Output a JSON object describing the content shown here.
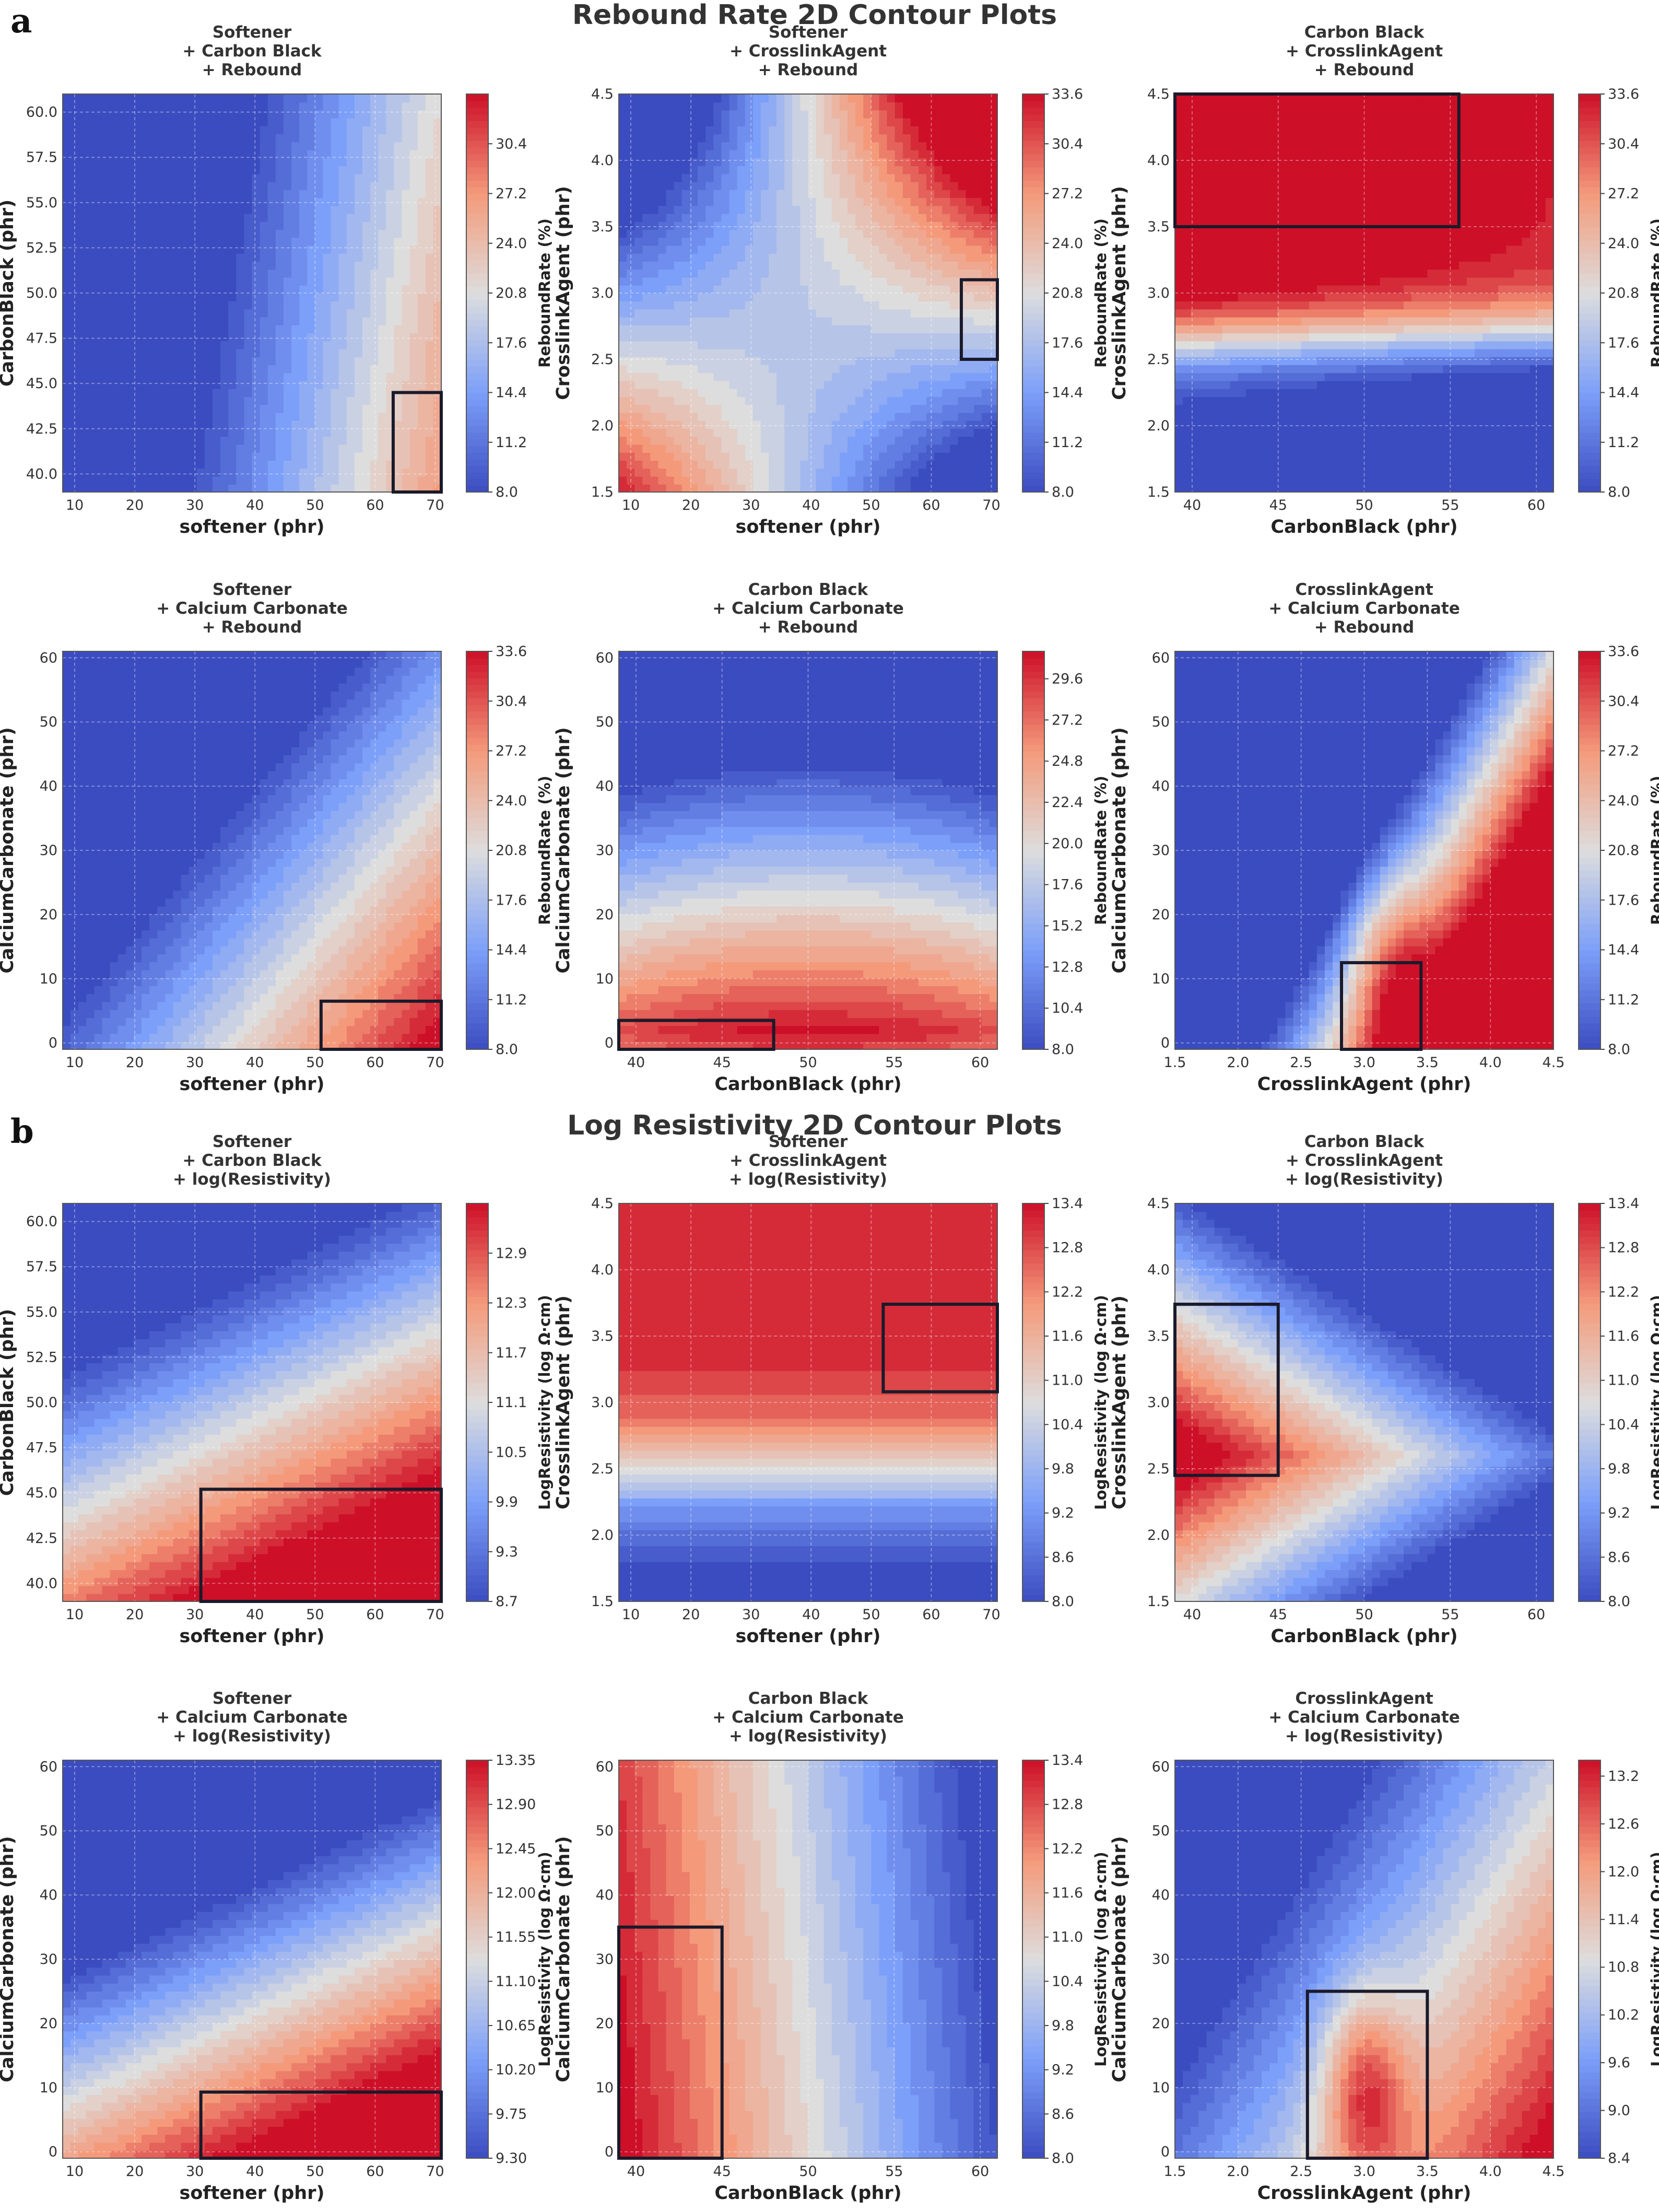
{
  "figure": {
    "sections": [
      {
        "letter": "a",
        "title": "Rebound Rate 2D Contour Plots"
      },
      {
        "letter": "b",
        "title": "Log Resistivity 2D Contour Plots"
      }
    ]
  },
  "chart_data": [
    {
      "type": "contour",
      "section": "a",
      "title_lines": [
        "Softener",
        "+ Carbon Black",
        "+ Rebound"
      ],
      "xlabel": "softener (phr)",
      "ylabel": "CarbonBlack (phr)",
      "xlim": [
        8,
        71
      ],
      "ylim": [
        39,
        61
      ],
      "xticks": [
        "10",
        "20",
        "30",
        "40",
        "50",
        "60",
        "70"
      ],
      "yticks": [
        "40.0",
        "42.5",
        "45.0",
        "47.5",
        "50.0",
        "52.5",
        "55.0",
        "57.5",
        "60.0"
      ],
      "colorbar_label": "ReboundRate (%)",
      "colorbar_range": [
        8.0,
        33.6
      ],
      "colorbar_ticks": [
        "8.0",
        "11.2",
        "14.4",
        "17.6",
        "20.8",
        "24.0",
        "27.2",
        "30.4"
      ],
      "field": {
        "model": "linear",
        "a": 8.0,
        "bx": 0.45,
        "by": -0.25,
        "x0": 35,
        "y0": 50
      },
      "optimal_region": {
        "x": [
          63,
          71
        ],
        "y": [
          39,
          44.5
        ]
      }
    },
    {
      "type": "contour",
      "section": "a",
      "title_lines": [
        "Softener",
        "+ CrosslinkAgent",
        "+ Rebound"
      ],
      "xlabel": "softener (phr)",
      "ylabel": "CrosslinkAgent (phr)",
      "xlim": [
        8,
        71
      ],
      "ylim": [
        1.5,
        4.5
      ],
      "xticks": [
        "10",
        "20",
        "30",
        "40",
        "50",
        "60",
        "70"
      ],
      "yticks": [
        "1.5",
        "2.0",
        "2.5",
        "3.0",
        "3.5",
        "4.0",
        "4.5"
      ],
      "colorbar_label": "ReboundRate (%)",
      "colorbar_range": [
        8.0,
        33.6
      ],
      "colorbar_ticks": [
        "8.0",
        "11.2",
        "14.4",
        "17.6",
        "20.8",
        "24.0",
        "27.2",
        "30.4",
        "33.6"
      ],
      "field": {
        "model": "saddle",
        "a": 19.0,
        "bx": 0.15,
        "by": 1.5,
        "cxy": 0.45,
        "x0": 40,
        "y0": 3.0
      },
      "optimal_region": {
        "x": [
          65,
          71
        ],
        "y": [
          2.5,
          3.1
        ]
      }
    },
    {
      "type": "contour",
      "section": "a",
      "title_lines": [
        "Carbon Black",
        "+ CrosslinkAgent",
        "+ Rebound"
      ],
      "xlabel": "CarbonBlack (phr)",
      "ylabel": "CrosslinkAgent (phr)",
      "xlim": [
        39,
        61
      ],
      "ylim": [
        1.5,
        4.5
      ],
      "xticks": [
        "40",
        "45",
        "50",
        "55",
        "60"
      ],
      "yticks": [
        "1.5",
        "2.0",
        "2.5",
        "3.0",
        "3.5",
        "4.0",
        "4.5"
      ],
      "colorbar_label": "ReboundRate (%)",
      "colorbar_range": [
        8.0,
        33.6
      ],
      "colorbar_ticks": [
        "8.0",
        "11.2",
        "14.4",
        "17.6",
        "20.8",
        "24.0",
        "27.2",
        "30.4",
        "33.6"
      ],
      "field": {
        "model": "sigmoid_y",
        "lo": 5.0,
        "hi": 37.0,
        "y0": 2.65,
        "s": 0.18,
        "bx": -0.25,
        "x0": 45
      },
      "optimal_region": {
        "x": [
          39,
          55.5
        ],
        "y": [
          3.5,
          4.5
        ]
      }
    },
    {
      "type": "contour",
      "section": "a",
      "title_lines": [
        "Softener",
        "+ Calcium Carbonate",
        "+ Rebound"
      ],
      "xlabel": "softener (phr)",
      "ylabel": "CalciumCarbonate (phr)",
      "xlim": [
        8,
        71
      ],
      "ylim": [
        -1,
        61
      ],
      "xticks": [
        "10",
        "20",
        "30",
        "40",
        "50",
        "60",
        "70"
      ],
      "yticks": [
        "0",
        "10",
        "20",
        "30",
        "40",
        "50",
        "60"
      ],
      "colorbar_label": "ReboundRate (%)",
      "colorbar_range": [
        8.0,
        33.6
      ],
      "colorbar_ticks": [
        "8.0",
        "11.2",
        "14.4",
        "17.6",
        "20.8",
        "24.0",
        "27.2",
        "30.4",
        "33.6"
      ],
      "field": {
        "model": "linear",
        "a": 20.8,
        "bx": 0.4,
        "by": -0.35,
        "x0": 45,
        "y0": 10
      },
      "optimal_region": {
        "x": [
          51,
          71
        ],
        "y": [
          -1,
          6.5
        ]
      }
    },
    {
      "type": "contour",
      "section": "a",
      "title_lines": [
        "Carbon Black",
        "+ Calcium Carbonate",
        "+ Rebound"
      ],
      "xlabel": "CarbonBlack (phr)",
      "ylabel": "CalciumCarbonate (phr)",
      "xlim": [
        39,
        61
      ],
      "ylim": [
        -1,
        61
      ],
      "xticks": [
        "40",
        "45",
        "50",
        "55",
        "60"
      ],
      "yticks": [
        "0",
        "10",
        "20",
        "30",
        "40",
        "50",
        "60"
      ],
      "colorbar_label": "ReboundRate (%)",
      "colorbar_range": [
        8.0,
        31.2
      ],
      "colorbar_ticks": [
        "8.0",
        "10.4",
        "12.8",
        "15.2",
        "17.6",
        "20.0",
        "22.4",
        "24.8",
        "27.2",
        "29.6"
      ],
      "field": {
        "model": "wave",
        "a": 31.0,
        "by": -0.55,
        "c": -0.02,
        "cy": 2,
        "x0": 50
      },
      "optimal_region": {
        "x": [
          39,
          48
        ],
        "y": [
          -1,
          3.5
        ]
      }
    },
    {
      "type": "contour",
      "section": "a",
      "title_lines": [
        "CrosslinkAgent",
        "+ Calcium Carbonate",
        "+ Rebound"
      ],
      "xlabel": "CrosslinkAgent (phr)",
      "ylabel": "CalciumCarbonate (phr)",
      "xlim": [
        1.5,
        4.5
      ],
      "ylim": [
        -1,
        61
      ],
      "xticks": [
        "1.5",
        "2.0",
        "2.5",
        "3.0",
        "3.5",
        "4.0",
        "4.5"
      ],
      "yticks": [
        "0",
        "10",
        "20",
        "30",
        "40",
        "50",
        "60"
      ],
      "colorbar_label": "ReboundRate (%)",
      "colorbar_range": [
        8.0,
        33.6
      ],
      "colorbar_ticks": [
        "8.0",
        "11.2",
        "14.4",
        "17.6",
        "20.8",
        "24.0",
        "27.2",
        "30.4",
        "33.6"
      ],
      "field": {
        "model": "ridge",
        "a": 8.0,
        "bx": 40.0,
        "by": -0.7,
        "x0": 2.2,
        "y0": 0,
        "peakX": 3.2,
        "peakY": 12,
        "peak": 8
      },
      "optimal_region": {
        "x": [
          2.82,
          3.45
        ],
        "y": [
          -1,
          12.5
        ]
      }
    },
    {
      "type": "contour",
      "section": "b",
      "title_lines": [
        "Softener",
        "+ Carbon Black",
        "+ log(Resistivity)"
      ],
      "xlabel": "softener (phr)",
      "ylabel": "CarbonBlack (phr)",
      "xlim": [
        8,
        71
      ],
      "ylim": [
        39,
        61
      ],
      "xticks": [
        "10",
        "20",
        "30",
        "40",
        "50",
        "60",
        "70"
      ],
      "yticks": [
        "40.0",
        "42.5",
        "45.0",
        "47.5",
        "50.0",
        "52.5",
        "55.0",
        "57.5",
        "60.0"
      ],
      "colorbar_label": "LogResistivity (log Ω·cm)",
      "colorbar_range": [
        8.7,
        13.5
      ],
      "colorbar_ticks": [
        "8.7",
        "9.3",
        "9.9",
        "10.5",
        "11.1",
        "11.7",
        "12.3",
        "12.9"
      ],
      "field": {
        "model": "linear",
        "a": 13.2,
        "bx": 0.05,
        "by": -0.3,
        "x0": 40,
        "y0": 42
      },
      "optimal_region": {
        "x": [
          31,
          71
        ],
        "y": [
          39,
          45.2
        ]
      }
    },
    {
      "type": "contour",
      "section": "b",
      "title_lines": [
        "Softener",
        "+ CrosslinkAgent",
        "+ log(Resistivity)"
      ],
      "xlabel": "softener (phr)",
      "ylabel": "CrosslinkAgent (phr)",
      "xlim": [
        8,
        71
      ],
      "ylim": [
        1.5,
        4.5
      ],
      "xticks": [
        "10",
        "20",
        "30",
        "40",
        "50",
        "60",
        "70"
      ],
      "yticks": [
        "1.5",
        "2.0",
        "2.5",
        "3.0",
        "3.5",
        "4.0",
        "4.5"
      ],
      "colorbar_label": "LogResistivity (log Ω·cm)",
      "colorbar_range": [
        8.0,
        13.4
      ],
      "colorbar_ticks": [
        "8.0",
        "8.6",
        "9.2",
        "9.8",
        "10.4",
        "11.0",
        "11.6",
        "12.2",
        "12.8",
        "13.4"
      ],
      "field": {
        "model": "sigmoid_y",
        "lo": 7.8,
        "hi": 13.2,
        "y0": 2.45,
        "s": 0.25,
        "bx": 0.0,
        "x0": 40
      },
      "optimal_region": {
        "x": [
          52,
          71
        ],
        "y": [
          3.08,
          3.74
        ]
      }
    },
    {
      "type": "contour",
      "section": "b",
      "title_lines": [
        "Carbon Black",
        "+ CrosslinkAgent",
        "+ log(Resistivity)"
      ],
      "xlabel": "CarbonBlack (phr)",
      "ylabel": "CrosslinkAgent (phr)",
      "xlim": [
        39,
        61
      ],
      "ylim": [
        1.5,
        4.5
      ],
      "xticks": [
        "40",
        "45",
        "50",
        "55",
        "60"
      ],
      "yticks": [
        "1.5",
        "2.0",
        "2.5",
        "3.0",
        "3.5",
        "4.0",
        "4.5"
      ],
      "colorbar_label": "LogResistivity (log Ω·cm)",
      "colorbar_range": [
        8.0,
        13.4
      ],
      "colorbar_ticks": [
        "8.0",
        "8.6",
        "9.2",
        "9.8",
        "10.4",
        "11.0",
        "11.6",
        "12.2",
        "12.8",
        "13.4"
      ],
      "field": {
        "model": "diag",
        "a": 12.8,
        "bx": -0.25,
        "by": 2.2,
        "x0": 42,
        "y0": 2.6
      },
      "optimal_region": {
        "x": [
          39,
          45
        ],
        "y": [
          2.45,
          3.74
        ]
      }
    },
    {
      "type": "contour",
      "section": "b",
      "title_lines": [
        "Softener",
        "+ Calcium Carbonate",
        "+ log(Resistivity)"
      ],
      "xlabel": "softener (phr)",
      "ylabel": "CalciumCarbonate (phr)",
      "xlim": [
        8,
        71
      ],
      "ylim": [
        -1,
        61
      ],
      "xticks": [
        "10",
        "20",
        "30",
        "40",
        "50",
        "60",
        "70"
      ],
      "yticks": [
        "0",
        "10",
        "20",
        "30",
        "40",
        "50",
        "60"
      ],
      "colorbar_label": "LogResistivity (log Ω·cm)",
      "colorbar_range": [
        9.3,
        13.35
      ],
      "colorbar_ticks": [
        "9.30",
        "9.75",
        "10.20",
        "10.65",
        "11.10",
        "11.55",
        "12.00",
        "12.45",
        "12.90",
        "13.35"
      ],
      "field": {
        "model": "linear",
        "a": 13.0,
        "bx": 0.045,
        "by": -0.1,
        "x0": 40,
        "y0": 5
      },
      "optimal_region": {
        "x": [
          31,
          71
        ],
        "y": [
          -1,
          9.3
        ]
      }
    },
    {
      "type": "contour",
      "section": "b",
      "title_lines": [
        "Carbon Black",
        "+ Calcium Carbonate",
        "+ log(Resistivity)"
      ],
      "xlabel": "CarbonBlack (phr)",
      "ylabel": "CalciumCarbonate (phr)",
      "xlim": [
        39,
        61
      ],
      "ylim": [
        -1,
        61
      ],
      "xticks": [
        "40",
        "45",
        "50",
        "55",
        "60"
      ],
      "yticks": [
        "0",
        "10",
        "20",
        "30",
        "40",
        "50",
        "60"
      ],
      "colorbar_label": "LogResistivity (log Ω·cm)",
      "colorbar_range": [
        8.0,
        13.4
      ],
      "colorbar_ticks": [
        "8.0",
        "8.6",
        "9.2",
        "9.8",
        "10.4",
        "11.0",
        "11.6",
        "12.2",
        "12.8",
        "13.4"
      ],
      "field": {
        "model": "linear",
        "a": 13.4,
        "bx": -0.25,
        "by": -0.01,
        "x0": 39,
        "y0": 20
      },
      "optimal_region": {
        "x": [
          39,
          45
        ],
        "y": [
          -1,
          35
        ]
      }
    },
    {
      "type": "contour",
      "section": "b",
      "title_lines": [
        "CrosslinkAgent",
        "+ Calcium Carbonate",
        "+ log(Resistivity)"
      ],
      "xlabel": "CrosslinkAgent (phr)",
      "ylabel": "CalciumCarbonate (phr)",
      "xlim": [
        1.5,
        4.5
      ],
      "ylim": [
        -1,
        61
      ],
      "xticks": [
        "1.5",
        "2.0",
        "2.5",
        "3.0",
        "3.5",
        "4.0",
        "4.5"
      ],
      "yticks": [
        "0",
        "10",
        "20",
        "30",
        "40",
        "50",
        "60"
      ],
      "colorbar_label": "LogResistivity (log Ω·cm)",
      "colorbar_range": [
        8.4,
        13.4
      ],
      "colorbar_ticks": [
        "8.4",
        "9.0",
        "9.6",
        "10.2",
        "10.8",
        "11.4",
        "12.0",
        "12.6",
        "13.2"
      ],
      "field": {
        "model": "ridge",
        "a": 9.0,
        "bx": 2.6,
        "by": -0.05,
        "x0": 1.5,
        "y0": 0,
        "peakX": 3.0,
        "peakY": 10,
        "peak": 2.2
      },
      "optimal_region": {
        "x": [
          2.55,
          3.5
        ],
        "y": [
          -1,
          25
        ]
      }
    }
  ]
}
